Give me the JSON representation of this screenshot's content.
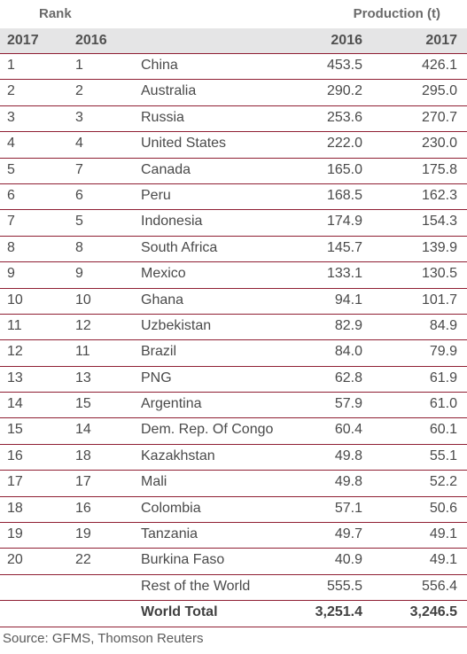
{
  "header": {
    "rank_label": "Rank",
    "production_label": "Production (t)",
    "col_rank_2017": "2017",
    "col_rank_2016": "2016",
    "col_country": "",
    "col_prod_2016": "2016",
    "col_prod_2017": "2017"
  },
  "chart_data": {
    "type": "table",
    "columns": [
      "2017",
      "2016",
      "",
      "2016",
      "2017"
    ],
    "rows": [
      {
        "rank_2017": "1",
        "rank_2016": "1",
        "country": "China",
        "prod_2016": "453.5",
        "prod_2017": "426.1"
      },
      {
        "rank_2017": "2",
        "rank_2016": "2",
        "country": "Australia",
        "prod_2016": "290.2",
        "prod_2017": "295.0"
      },
      {
        "rank_2017": "3",
        "rank_2016": "3",
        "country": "Russia",
        "prod_2016": "253.6",
        "prod_2017": "270.7"
      },
      {
        "rank_2017": "4",
        "rank_2016": "4",
        "country": "United States",
        "prod_2016": "222.0",
        "prod_2017": "230.0"
      },
      {
        "rank_2017": "5",
        "rank_2016": "7",
        "country": "Canada",
        "prod_2016": "165.0",
        "prod_2017": "175.8"
      },
      {
        "rank_2017": "6",
        "rank_2016": "6",
        "country": "Peru",
        "prod_2016": "168.5",
        "prod_2017": "162.3"
      },
      {
        "rank_2017": "7",
        "rank_2016": "5",
        "country": "Indonesia",
        "prod_2016": "174.9",
        "prod_2017": "154.3"
      },
      {
        "rank_2017": "8",
        "rank_2016": "8",
        "country": "South Africa",
        "prod_2016": "145.7",
        "prod_2017": "139.9"
      },
      {
        "rank_2017": "9",
        "rank_2016": "9",
        "country": "Mexico",
        "prod_2016": "133.1",
        "prod_2017": "130.5"
      },
      {
        "rank_2017": "10",
        "rank_2016": "10",
        "country": "Ghana",
        "prod_2016": "94.1",
        "prod_2017": "101.7"
      },
      {
        "rank_2017": "11",
        "rank_2016": "12",
        "country": "Uzbekistan",
        "prod_2016": "82.9",
        "prod_2017": "84.9"
      },
      {
        "rank_2017": "12",
        "rank_2016": "11",
        "country": "Brazil",
        "prod_2016": "84.0",
        "prod_2017": "79.9"
      },
      {
        "rank_2017": "13",
        "rank_2016": "13",
        "country": "PNG",
        "prod_2016": "62.8",
        "prod_2017": "61.9"
      },
      {
        "rank_2017": "14",
        "rank_2016": "15",
        "country": "Argentina",
        "prod_2016": "57.9",
        "prod_2017": "61.0"
      },
      {
        "rank_2017": "15",
        "rank_2016": "14",
        "country": "Dem. Rep. Of Congo",
        "prod_2016": "60.4",
        "prod_2017": "60.1"
      },
      {
        "rank_2017": "16",
        "rank_2016": "18",
        "country": "Kazakhstan",
        "prod_2016": "49.8",
        "prod_2017": "55.1"
      },
      {
        "rank_2017": "17",
        "rank_2016": "17",
        "country": "Mali",
        "prod_2016": "49.8",
        "prod_2017": "52.2"
      },
      {
        "rank_2017": "18",
        "rank_2016": "16",
        "country": "Colombia",
        "prod_2016": "57.1",
        "prod_2017": "50.6"
      },
      {
        "rank_2017": "19",
        "rank_2016": "19",
        "country": "Tanzania",
        "prod_2016": "49.7",
        "prod_2017": "49.1"
      },
      {
        "rank_2017": "20",
        "rank_2016": "22",
        "country": "Burkina Faso",
        "prod_2016": "40.9",
        "prod_2017": "49.1"
      },
      {
        "rank_2017": "",
        "rank_2016": "",
        "country": "Rest of the World",
        "prod_2016": "555.5",
        "prod_2017": "556.4"
      }
    ],
    "total": {
      "country": "World Total",
      "prod_2016": "3,251.4",
      "prod_2017": "3,246.5"
    }
  },
  "source": "Source: GFMS, Thomson Reuters",
  "colors": {
    "rule": "#8f1f33",
    "header_bg": "#e5e5e6"
  }
}
